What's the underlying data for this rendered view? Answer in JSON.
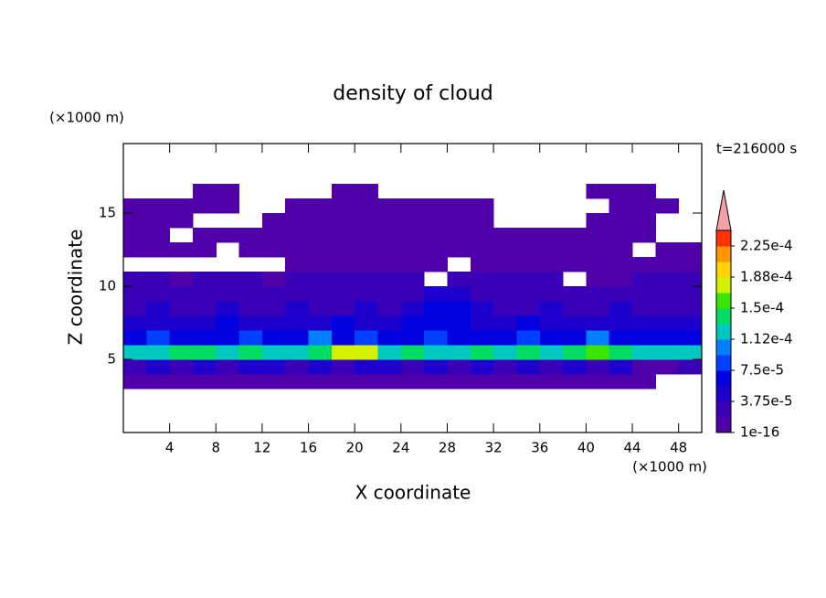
{
  "chart_data": {
    "type": "contour",
    "title": "density of cloud",
    "x_label": "X coordinate",
    "y_label": "Z coordinate",
    "x_unit": "(×1000 m)",
    "y_unit": "(×1000 m)",
    "annotation": "t=216000 s",
    "xlim": [
      0,
      50
    ],
    "ylim": [
      0,
      19.75
    ],
    "xticks": [
      4,
      8,
      12,
      16,
      20,
      24,
      28,
      32,
      36,
      40,
      44,
      48
    ],
    "yticks": [
      5,
      10,
      15
    ],
    "x": [
      1,
      3,
      5,
      7,
      9,
      11,
      13,
      15,
      17,
      19,
      21,
      23,
      25,
      27,
      29,
      31,
      33,
      35,
      37,
      39,
      41,
      43,
      45,
      47,
      49
    ],
    "z": [
      3.5,
      4.5,
      5.5,
      6.5,
      7.5,
      8.5,
      9.5,
      10.5,
      11.5,
      12.5,
      13.5,
      14.5,
      15.5,
      16.5
    ],
    "values": [
      [
        5e-06,
        5e-06,
        5e-06,
        5e-06,
        5e-06,
        5e-06,
        5e-06,
        5e-06,
        5e-06,
        5e-06,
        5e-06,
        5e-06,
        5e-06,
        5e-06,
        5e-06,
        5e-06,
        5e-06,
        5e-06,
        5e-06,
        5e-06,
        5e-06,
        5e-06,
        5e-06,
        0,
        0
      ],
      [
        2.5e-05,
        4.5e-05,
        2.5e-05,
        4.5e-05,
        2.5e-05,
        4.5e-05,
        4.5e-05,
        2.5e-05,
        4.5e-05,
        2.5e-05,
        4.5e-05,
        4.5e-05,
        2.5e-05,
        4.5e-05,
        2.5e-05,
        4.5e-05,
        2.5e-05,
        4.5e-05,
        2.5e-05,
        4.5e-05,
        2.5e-05,
        4.5e-05,
        5e-06,
        5e-06,
        2.5e-05
      ],
      [
        0.00012,
        0.00012,
        0.00014,
        0.00014,
        0.00012,
        0.00014,
        0.00012,
        0.00012,
        0.00014,
        0.00018,
        0.00018,
        0.00012,
        0.00014,
        0.00012,
        0.00012,
        0.00014,
        0.00012,
        0.00014,
        0.00012,
        0.00014,
        0.00016,
        0.00014,
        0.00012,
        0.00012,
        0.00012
      ],
      [
        6e-05,
        8e-05,
        6e-05,
        6e-05,
        6e-05,
        8e-05,
        6e-05,
        6e-05,
        0.0001,
        6e-05,
        8e-05,
        6e-05,
        6e-05,
        8e-05,
        6e-05,
        6e-05,
        6e-05,
        8e-05,
        6e-05,
        6e-05,
        0.0001,
        6e-05,
        6e-05,
        6e-05,
        6e-05
      ],
      [
        4.5e-05,
        4.5e-05,
        4.5e-05,
        4.5e-05,
        6e-05,
        4.5e-05,
        4.5e-05,
        4.5e-05,
        4.5e-05,
        6e-05,
        4.5e-05,
        4.5e-05,
        6e-05,
        6e-05,
        6e-05,
        4.5e-05,
        4.5e-05,
        6e-05,
        4.5e-05,
        4.5e-05,
        4.5e-05,
        4.5e-05,
        4.5e-05,
        4.5e-05,
        4.5e-05
      ],
      [
        2.5e-05,
        4.5e-05,
        2.5e-05,
        2.5e-05,
        4.5e-05,
        2.5e-05,
        2.5e-05,
        4.5e-05,
        2.5e-05,
        2.5e-05,
        4.5e-05,
        2.5e-05,
        4.5e-05,
        6e-05,
        6e-05,
        4.5e-05,
        2.5e-05,
        2.5e-05,
        4.5e-05,
        2.5e-05,
        2.5e-05,
        4.5e-05,
        2.5e-05,
        2.5e-05,
        2.5e-05
      ],
      [
        2.5e-05,
        2.5e-05,
        2.5e-05,
        2.5e-05,
        2.5e-05,
        2.5e-05,
        2.5e-05,
        2.5e-05,
        2.5e-05,
        2.5e-05,
        2.5e-05,
        2.5e-05,
        2.5e-05,
        4.5e-05,
        4.5e-05,
        2.5e-05,
        2.5e-05,
        2.5e-05,
        2.5e-05,
        2.5e-05,
        2.5e-05,
        2.5e-05,
        2.5e-05,
        2.5e-05,
        2.5e-05
      ],
      [
        2.5e-05,
        2.5e-05,
        5e-06,
        2.5e-05,
        2.5e-05,
        2.5e-05,
        5e-06,
        2.5e-05,
        2.5e-05,
        2.5e-05,
        2.5e-05,
        2.5e-05,
        2.5e-05,
        0,
        2.5e-05,
        2.5e-05,
        2.5e-05,
        2.5e-05,
        2.5e-05,
        0,
        5e-06,
        5e-06,
        2.5e-05,
        2.5e-05,
        2.5e-05
      ],
      [
        0,
        0,
        0,
        0,
        0,
        0,
        0,
        5e-06,
        5e-06,
        5e-06,
        5e-06,
        5e-06,
        5e-06,
        5e-06,
        0,
        5e-06,
        5e-06,
        5e-06,
        5e-06,
        5e-06,
        5e-06,
        5e-06,
        5e-06,
        5e-06,
        5e-06
      ],
      [
        5e-06,
        5e-06,
        5e-06,
        5e-06,
        0,
        5e-06,
        5e-06,
        5e-06,
        5e-06,
        5e-06,
        5e-06,
        5e-06,
        5e-06,
        5e-06,
        5e-06,
        5e-06,
        5e-06,
        5e-06,
        5e-06,
        5e-06,
        5e-06,
        5e-06,
        0,
        5e-06,
        5e-06
      ],
      [
        5e-06,
        5e-06,
        0,
        5e-06,
        5e-06,
        5e-06,
        5e-06,
        5e-06,
        5e-06,
        5e-06,
        5e-06,
        5e-06,
        5e-06,
        5e-06,
        5e-06,
        5e-06,
        5e-06,
        5e-06,
        5e-06,
        5e-06,
        5e-06,
        5e-06,
        5e-06,
        0,
        0
      ],
      [
        5e-06,
        5e-06,
        5e-06,
        0,
        0,
        0,
        5e-06,
        5e-06,
        5e-06,
        5e-06,
        5e-06,
        5e-06,
        5e-06,
        5e-06,
        5e-06,
        5e-06,
        0,
        0,
        0,
        0,
        5e-06,
        5e-06,
        5e-06,
        0,
        0
      ],
      [
        5e-06,
        5e-06,
        5e-06,
        5e-06,
        5e-06,
        0,
        0,
        5e-06,
        5e-06,
        5e-06,
        5e-06,
        5e-06,
        5e-06,
        5e-06,
        5e-06,
        5e-06,
        0,
        0,
        0,
        0,
        0,
        5e-06,
        5e-06,
        5e-06,
        0
      ],
      [
        0,
        0,
        0,
        5e-06,
        5e-06,
        0,
        0,
        0,
        0,
        5e-06,
        5e-06,
        0,
        0,
        0,
        0,
        0,
        0,
        0,
        0,
        0,
        5e-06,
        5e-06,
        5e-06,
        0,
        0
      ]
    ],
    "colorbar": {
      "clim": [
        0,
        0.00024375
      ],
      "colors": [
        "#5000a8",
        "#3a00b8",
        "#1e00cc",
        "#0000e0",
        "#0040ff",
        "#0080ff",
        "#00c8c0",
        "#00dc64",
        "#3ce600",
        "#d2f000",
        "#ffd200",
        "#ff9600",
        "#ff3200"
      ],
      "extend_color": "#f4a0a8",
      "ticks": [
        {
          "value": 1e-16,
          "label": "1e-16"
        },
        {
          "value": 3.75e-05,
          "label": "3.75e-5"
        },
        {
          "value": 7.5e-05,
          "label": "7.5e-5"
        },
        {
          "value": 0.0001125,
          "label": "1.12e-4"
        },
        {
          "value": 0.00015,
          "label": "1.5e-4"
        },
        {
          "value": 0.0001875,
          "label": "1.88e-4"
        },
        {
          "value": 0.000225,
          "label": "2.25e-4"
        }
      ]
    }
  }
}
